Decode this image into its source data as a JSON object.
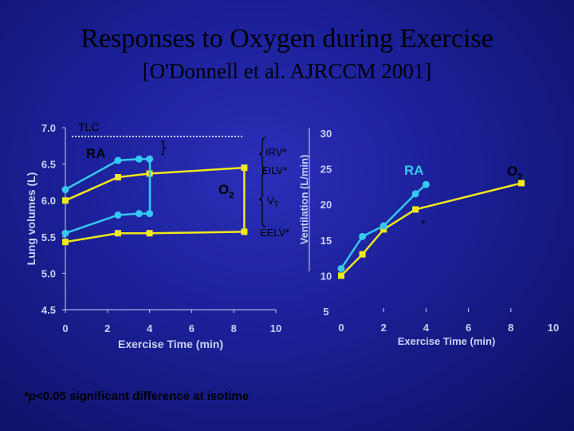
{
  "title": "Responses to Oxygen during Exercise",
  "subtitle": "[O'Donnell et al. AJRCCM 2001]",
  "footnote": "*p<0.05 significant difference at isotime",
  "colors": {
    "ra": "#35c8f0",
    "o2": "#f0e81c",
    "tlc_line": "#c8d4f4",
    "axis": "#c8d4f4",
    "label": "#000000"
  },
  "chart_data": [
    {
      "type": "line",
      "xlabel": "Exercise Time (min)",
      "ylabel": "Lung volumes (L)",
      "xlim": [
        0,
        10
      ],
      "ylim": [
        4.5,
        7.0
      ],
      "xticks": [
        "0",
        "2",
        "4",
        "6",
        "8",
        "10"
      ],
      "yticks": [
        "4.5",
        "5.0",
        "5.5",
        "6.0",
        "6.5",
        "7.0"
      ],
      "reference_lines": [
        {
          "label": "TLC",
          "y": 6.9
        }
      ],
      "annotations": [
        "IRV*",
        "EILV*",
        "VT",
        "EELV*"
      ],
      "series": [
        {
          "name": "RA",
          "role": "EILV",
          "x": [
            0,
            2.5,
            3.5,
            4
          ],
          "y": [
            6.15,
            6.55,
            6.57,
            6.57
          ]
        },
        {
          "name": "RA",
          "role": "EELV",
          "x": [
            0,
            2.5,
            3.5,
            4
          ],
          "y": [
            5.55,
            5.8,
            5.82,
            5.82
          ]
        },
        {
          "name": "O2",
          "role": "EILV",
          "x": [
            0,
            2.5,
            4,
            8.5
          ],
          "y": [
            6.0,
            6.32,
            6.37,
            6.45
          ]
        },
        {
          "name": "O2",
          "role": "EELV",
          "x": [
            0,
            2.5,
            4,
            8.5
          ],
          "y": [
            5.43,
            5.55,
            5.55,
            5.57
          ]
        }
      ]
    },
    {
      "type": "line",
      "xlabel": "Exercise Time (min)",
      "ylabel": "Ventilation (L/min)",
      "xlim": [
        0,
        10
      ],
      "ylim": [
        5,
        30
      ],
      "xticks": [
        "0",
        "2",
        "4",
        "6",
        "8",
        "10"
      ],
      "yticks": [
        "5",
        "10",
        "15",
        "20",
        "25",
        "30"
      ],
      "annotations": [
        "*"
      ],
      "series": [
        {
          "name": "RA",
          "x": [
            0,
            1,
            2,
            3.5,
            4
          ],
          "y": [
            11.0,
            15.5,
            17.0,
            21.5,
            22.8
          ]
        },
        {
          "name": "O2",
          "x": [
            0,
            1,
            2,
            3.5,
            8.5
          ],
          "y": [
            10.0,
            13.0,
            16.5,
            19.3,
            23.0
          ]
        }
      ]
    }
  ]
}
